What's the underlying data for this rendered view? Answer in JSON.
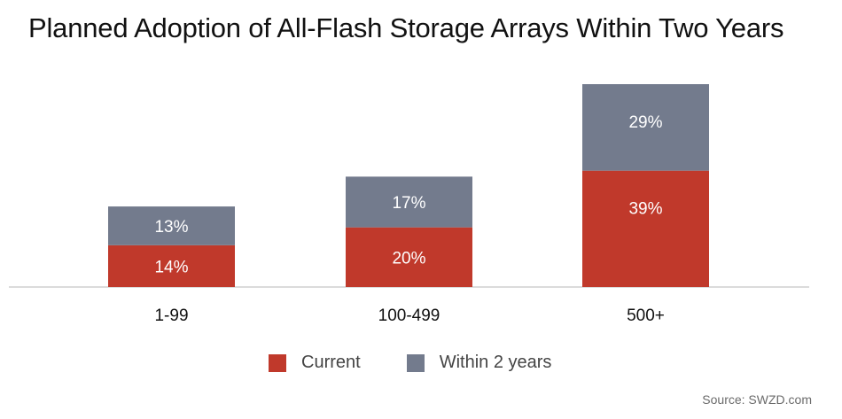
{
  "title": "Planned Adoption of All-Flash Storage Arrays Within Two Years",
  "source": "Source: SWZD.com",
  "colors": {
    "current": "#c0392b",
    "within_2_years": "#737b8d",
    "baseline": "#cfcfcf",
    "label_text": "#ffffff"
  },
  "chart_data": {
    "type": "bar",
    "stacked": true,
    "categories": [
      "1-99",
      "100-499",
      "500+"
    ],
    "series": [
      {
        "name": "Current",
        "values": [
          14,
          20,
          39
        ],
        "labels": [
          "14%",
          "20%",
          "39%"
        ]
      },
      {
        "name": "Within 2 years",
        "values": [
          13,
          17,
          29
        ],
        "labels": [
          "13%",
          "17%",
          "29%"
        ]
      }
    ],
    "ylim": [
      0,
      68
    ],
    "legend_position": "bottom",
    "grid": false
  }
}
